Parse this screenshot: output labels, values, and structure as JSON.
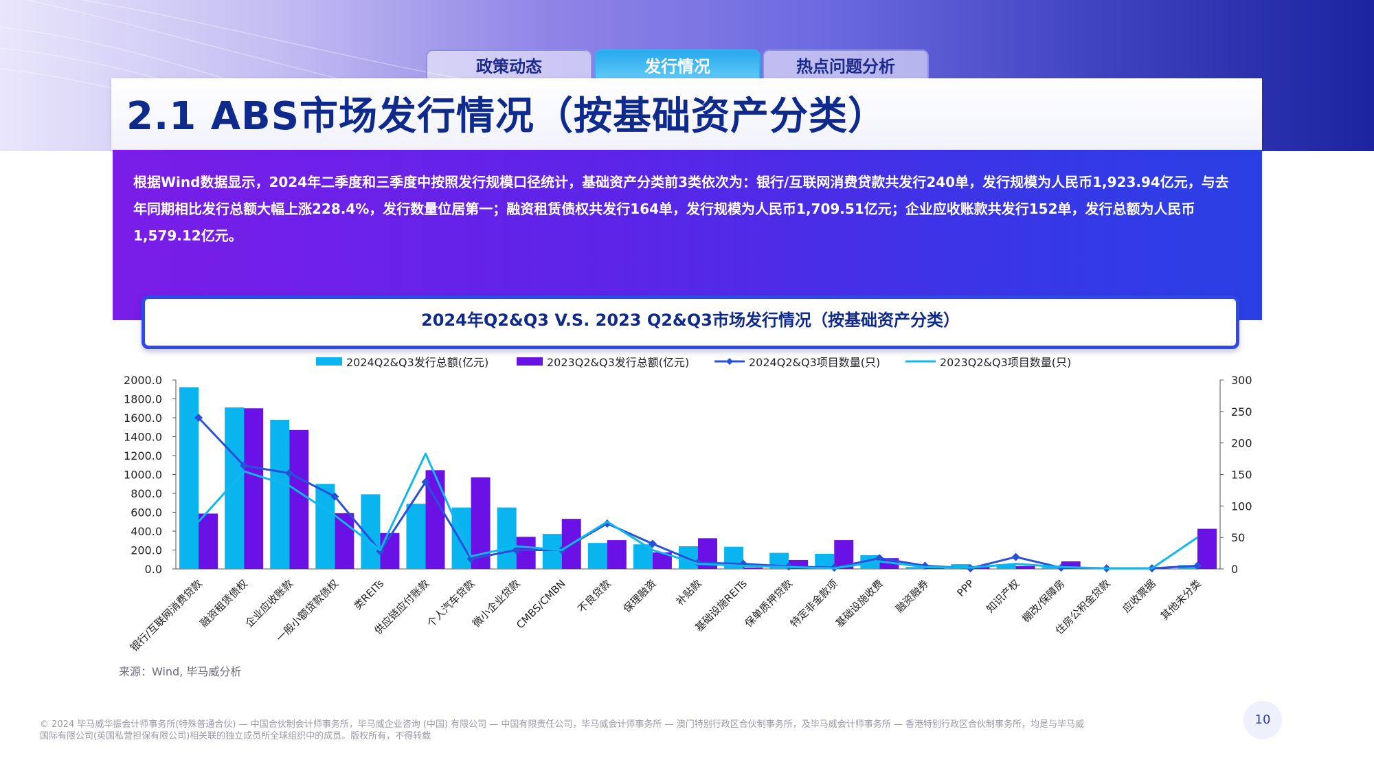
{
  "tabs": [
    {
      "label": "政策动态",
      "active": false
    },
    {
      "label": "发行情况",
      "active": true
    },
    {
      "label": "热点问题分析",
      "active": false
    }
  ],
  "title": "2.1 ABS市场发行情况（按基础资产分类）",
  "summary": "根据Wind数据显示，2024年二季度和三季度中按照发行规模口径统计，基础资产分类前3类依次为：银行/互联网消费贷款共发行240单，发行规模为人民币1,923.94亿元，与去年同期相比发行总额大幅上涨228.4%，发行数量位居第一；融资租赁债权共发行164单，发行规模为人民币1,709.51亿元；企业应收账款共发行152单，发行总额为人民币1,579.12亿元。",
  "chart_header": "2024年Q2&Q3 V.S. 2023 Q2&Q3市场发行情况（按基础资产分类）",
  "source": "来源：Wind, 毕马威分析",
  "footer_line1": "© 2024 毕马威华振会计师事务所(特殊普通合伙) — 中国合伙制会计师事务所，毕马威企业咨询 (中国) 有限公司 — 中国有限责任公司，毕马威会计师事务所 — 澳门特别行政区合伙制事务所，及毕马威会计师事务所 — 香港特别行政区合伙制事务所，均是与毕马威",
  "footer_line2": "国际有限公司(英国私营担保有限公司)相关联的独立成员所全球组织中的成员。版权所有，不得转载",
  "page_number": "10",
  "chart_data": {
    "type": "bar",
    "categories": [
      "银行/互联网消费贷款",
      "融资租赁债权",
      "企业应收账款",
      "一般小额贷款债权",
      "类REITs",
      "供应链应付账款",
      "个人汽车贷款",
      "微小企业贷款",
      "CMBS/CMBN",
      "不良贷款",
      "保理融资",
      "补贴款",
      "基础设施REITs",
      "保单质押贷款",
      "特定非金款项",
      "基础设施收费",
      "融资融券",
      "PPP",
      "知识产权",
      "棚改/保障房",
      "住房公积金贷款",
      "应收票据",
      "其他未分类"
    ],
    "series": [
      {
        "name": "2024Q2&Q3发行总额(亿元)",
        "type": "bar",
        "axis": "left",
        "color": "#0ab4ee",
        "values": [
          1924,
          1710,
          1579,
          900,
          790,
          690,
          650,
          650,
          370,
          275,
          260,
          240,
          235,
          170,
          160,
          145,
          20,
          50,
          50,
          20,
          10,
          5,
          40
        ]
      },
      {
        "name": "2023Q2&Q3发行总额(亿元)",
        "type": "bar",
        "axis": "left",
        "color": "#6a12e6",
        "values": [
          586,
          1700,
          1470,
          590,
          380,
          1045,
          970,
          340,
          530,
          305,
          175,
          325,
          15,
          95,
          305,
          115,
          10,
          30,
          30,
          80,
          10,
          5,
          425
        ]
      },
      {
        "name": "2024Q2&Q3项目数量(只)",
        "type": "line",
        "axis": "right",
        "color": "#2850d8",
        "marker": "diamond",
        "values": [
          240,
          164,
          152,
          115,
          28,
          138,
          16,
          30,
          30,
          72,
          40,
          10,
          8,
          4,
          2,
          17,
          5,
          1,
          19,
          2,
          1,
          1,
          5
        ]
      },
      {
        "name": "2023Q2&Q3项目数量(只)",
        "type": "line",
        "axis": "right",
        "color": "#12b6ee",
        "marker": "none",
        "values": [
          75,
          155,
          132,
          85,
          30,
          183,
          20,
          36,
          30,
          75,
          30,
          8,
          5,
          3,
          1,
          12,
          3,
          2,
          8,
          3,
          1,
          1,
          50
        ]
      }
    ],
    "y_left": {
      "min": 0,
      "max": 2000,
      "step": 200,
      "tick_format": "0.0"
    },
    "y_right": {
      "min": 0,
      "max": 300,
      "step": 50
    },
    "legend": "top",
    "grid": false
  }
}
